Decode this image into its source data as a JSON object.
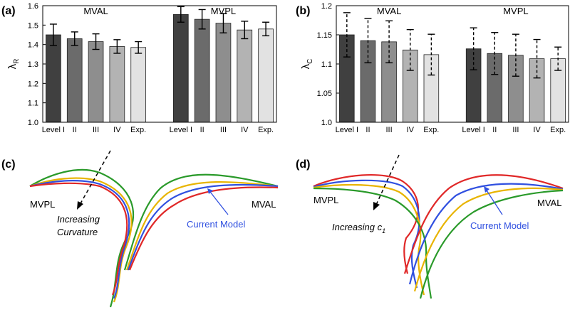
{
  "chart_data": [
    {
      "type": "bar",
      "panel_label": "(a)",
      "ylabel": "λ",
      "ylabel_sub": "R",
      "ylim": [
        1.0,
        1.6
      ],
      "yticks": [
        {
          "value": 1.0,
          "label": "1.0"
        },
        1.1,
        1.2,
        1.3,
        1.4,
        1.5,
        1.6
      ],
      "colors": [
        "#404040",
        "#6b6b6b",
        "#8e8e8e",
        "#b3b3b3",
        "#e2e2e2"
      ],
      "error_style": "solid",
      "groups": [
        {
          "name": "MVAL",
          "categories": [
            "Level I",
            "II",
            "III",
            "IV",
            "Exp."
          ],
          "values": [
            1.45,
            1.43,
            1.415,
            1.39,
            1.385
          ],
          "errors": [
            0.055,
            0.035,
            0.04,
            0.035,
            0.03
          ]
        },
        {
          "name": "MVPL",
          "categories": [
            "Level I",
            "II",
            "III",
            "IV",
            "Exp."
          ],
          "values": [
            1.555,
            1.53,
            1.51,
            1.475,
            1.48
          ],
          "errors": [
            0.04,
            0.05,
            0.05,
            0.045,
            0.035
          ]
        }
      ]
    },
    {
      "type": "bar",
      "panel_label": "(b)",
      "ylabel": "λ",
      "ylabel_sub": "C",
      "ylim": [
        1.0,
        1.2
      ],
      "yticks": [
        {
          "value": 1.0,
          "label": "1.0"
        },
        1.05,
        1.1,
        1.15,
        1.2
      ],
      "colors": [
        "#404040",
        "#6b6b6b",
        "#8e8e8e",
        "#b3b3b3",
        "#e2e2e2"
      ],
      "error_style": "dashed",
      "groups": [
        {
          "name": "MVAL",
          "categories": [
            "Level I",
            "II",
            "III",
            "IV",
            "Exp."
          ],
          "values": [
            1.15,
            1.14,
            1.138,
            1.124,
            1.116
          ],
          "errors": [
            0.038,
            0.038,
            0.036,
            0.035,
            0.035
          ]
        },
        {
          "name": "MVPL",
          "categories": [
            "Level I",
            "II",
            "III",
            "IV",
            "Exp."
          ],
          "values": [
            1.126,
            1.118,
            1.115,
            1.109,
            1.109
          ],
          "errors": [
            0.036,
            0.036,
            0.036,
            0.033,
            0.02
          ]
        }
      ]
    }
  ],
  "diagrams": [
    {
      "panel_label": "(c)",
      "left_label": "MVPL",
      "right_label": "MVAL",
      "arrow_label": [
        "Increasing",
        "Curvature"
      ],
      "model_label": "Current Model"
    },
    {
      "panel_label": "(d)",
      "left_label": "MVPL",
      "right_label": "MVAL",
      "arrow_label": [
        "Increasing c",
        "1"
      ],
      "model_label": "Current Model"
    }
  ]
}
